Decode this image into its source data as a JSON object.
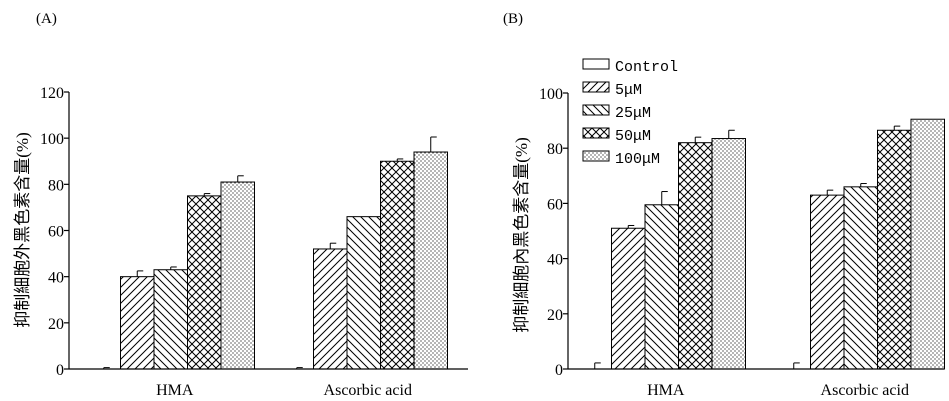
{
  "chart_data": [
    {
      "type": "bar",
      "panel_label": "(A)",
      "ylabel": "抑制細胞外黑色素含量(%)",
      "xlabel": "",
      "ylim": [
        0,
        120
      ],
      "yticks": [
        0,
        20,
        40,
        60,
        80,
        100,
        120
      ],
      "categories": [
        "HMA",
        "Ascorbic acid"
      ],
      "series": [
        {
          "name": "Control",
          "pattern": "blank",
          "values": [
            0,
            0
          ],
          "errors": [
            0.6,
            0.6
          ]
        },
        {
          "name": "5μM",
          "pattern": "diagonal-forward",
          "values": [
            40,
            52
          ],
          "errors": [
            2.5,
            2.5
          ]
        },
        {
          "name": "25μM",
          "pattern": "diagonal-backward",
          "values": [
            43,
            66
          ],
          "errors": [
            1.2,
            0
          ]
        },
        {
          "name": "50μM",
          "pattern": "crosshatch",
          "values": [
            75,
            90
          ],
          "errors": [
            1.0,
            1.0
          ]
        },
        {
          "name": "100μM",
          "pattern": "dots",
          "values": [
            81,
            94
          ],
          "errors": [
            2.7,
            6.5
          ]
        }
      ],
      "legend": "none"
    },
    {
      "type": "bar",
      "panel_label": "(B)",
      "ylabel": "抑制細胞內黑色素含量(%)",
      "xlabel": "",
      "ylim": [
        0,
        100
      ],
      "yticks": [
        0,
        20,
        40,
        60,
        80,
        100
      ],
      "categories": [
        "HMA",
        "Ascorbic acid"
      ],
      "series": [
        {
          "name": "Control",
          "pattern": "blank",
          "values": [
            0,
            0
          ],
          "errors": [
            2.2,
            2.2
          ]
        },
        {
          "name": "5μM",
          "pattern": "diagonal-forward",
          "values": [
            51,
            63
          ],
          "errors": [
            1.0,
            1.8
          ]
        },
        {
          "name": "25μM",
          "pattern": "diagonal-backward",
          "values": [
            59.5,
            66
          ],
          "errors": [
            4.8,
            1.2
          ]
        },
        {
          "name": "50μM",
          "pattern": "crosshatch",
          "values": [
            82,
            86.5
          ],
          "errors": [
            2.0,
            1.5
          ]
        },
        {
          "name": "100μM",
          "pattern": "dots",
          "values": [
            83.5,
            90.5
          ],
          "errors": [
            3.0,
            0
          ]
        }
      ],
      "legend": "top-left"
    }
  ]
}
